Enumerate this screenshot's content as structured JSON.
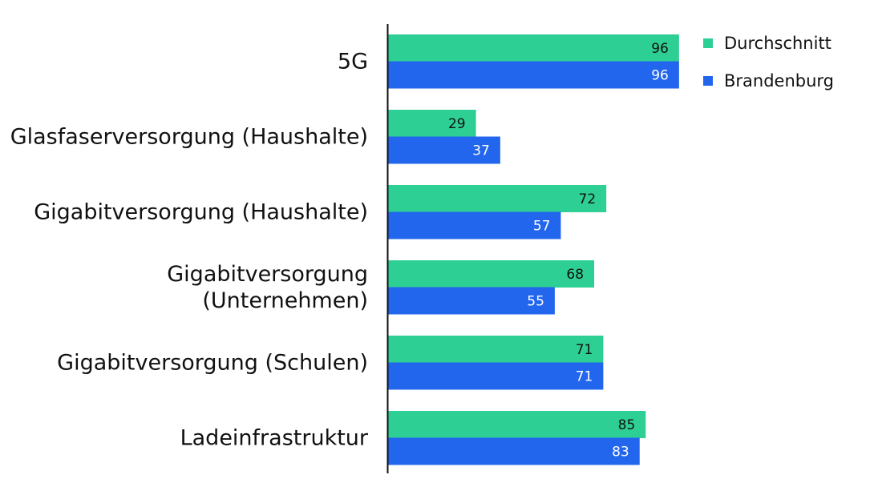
{
  "chart_data": {
    "type": "bar",
    "orientation": "horizontal",
    "categories": [
      [
        "5G"
      ],
      [
        "Glasfaserversorgung (Haushalte)"
      ],
      [
        "Gigabitversorgung (Haushalte)"
      ],
      [
        "Gigabitversorgung",
        "(Unternehmen)"
      ],
      [
        "Gigabitversorgung (Schulen)"
      ],
      [
        "Ladeinfrastruktur"
      ]
    ],
    "series": [
      {
        "name": "Durchschnitt",
        "color": "#2ecf95",
        "label_color": "#111111",
        "values": [
          96,
          29,
          72,
          68,
          71,
          85
        ]
      },
      {
        "name": "Brandenburg",
        "color": "#2266ee",
        "label_color": "#ffffff",
        "values": [
          96,
          37,
          57,
          55,
          71,
          83
        ]
      }
    ],
    "xlim": [
      0,
      100
    ],
    "grid": false,
    "legend": "top-right"
  }
}
